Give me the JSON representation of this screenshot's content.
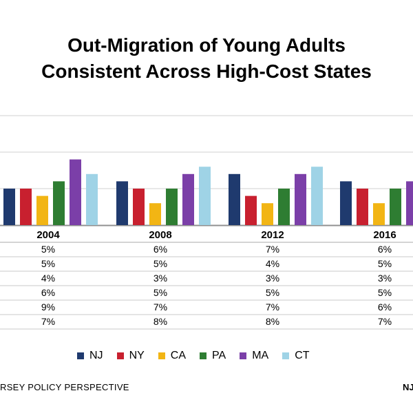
{
  "title_line1": "Out-Migration of Young Adults",
  "title_line2": "Consistent Across High-Cost States",
  "footer_left": "RSEY POLICY PERSPECTIVE",
  "footer_right": "NJ",
  "chart_data": {
    "type": "bar",
    "categories": [
      "2004",
      "2008",
      "2012",
      "2016"
    ],
    "series": [
      {
        "name": "NJ",
        "color": "#1f3a6e",
        "values": [
          5,
          6,
          7,
          6
        ],
        "labels": [
          "5%",
          "6%",
          "7%",
          "6%"
        ]
      },
      {
        "name": "NY",
        "color": "#c8202f",
        "values": [
          5,
          5,
          4,
          5
        ],
        "labels": [
          "5%",
          "5%",
          "4%",
          "5%"
        ]
      },
      {
        "name": "CA",
        "color": "#f2b514",
        "values": [
          4,
          3,
          3,
          3
        ],
        "labels": [
          "4%",
          "3%",
          "3%",
          "3%"
        ]
      },
      {
        "name": "PA",
        "color": "#2e7d32",
        "values": [
          6,
          5,
          5,
          5
        ],
        "labels": [
          "6%",
          "5%",
          "5%",
          "5%"
        ]
      },
      {
        "name": "MA",
        "color": "#7b3fa8",
        "values": [
          9,
          7,
          7,
          6
        ],
        "labels": [
          "9%",
          "7%",
          "7%",
          "6%"
        ]
      },
      {
        "name": "CT",
        "color": "#9fd3e6",
        "values": [
          7,
          8,
          8,
          7
        ],
        "labels": [
          "7%",
          "8%",
          "8%",
          "7%"
        ]
      }
    ],
    "ylim": [
      0,
      15
    ],
    "grid": true,
    "legend_position": "bottom"
  }
}
